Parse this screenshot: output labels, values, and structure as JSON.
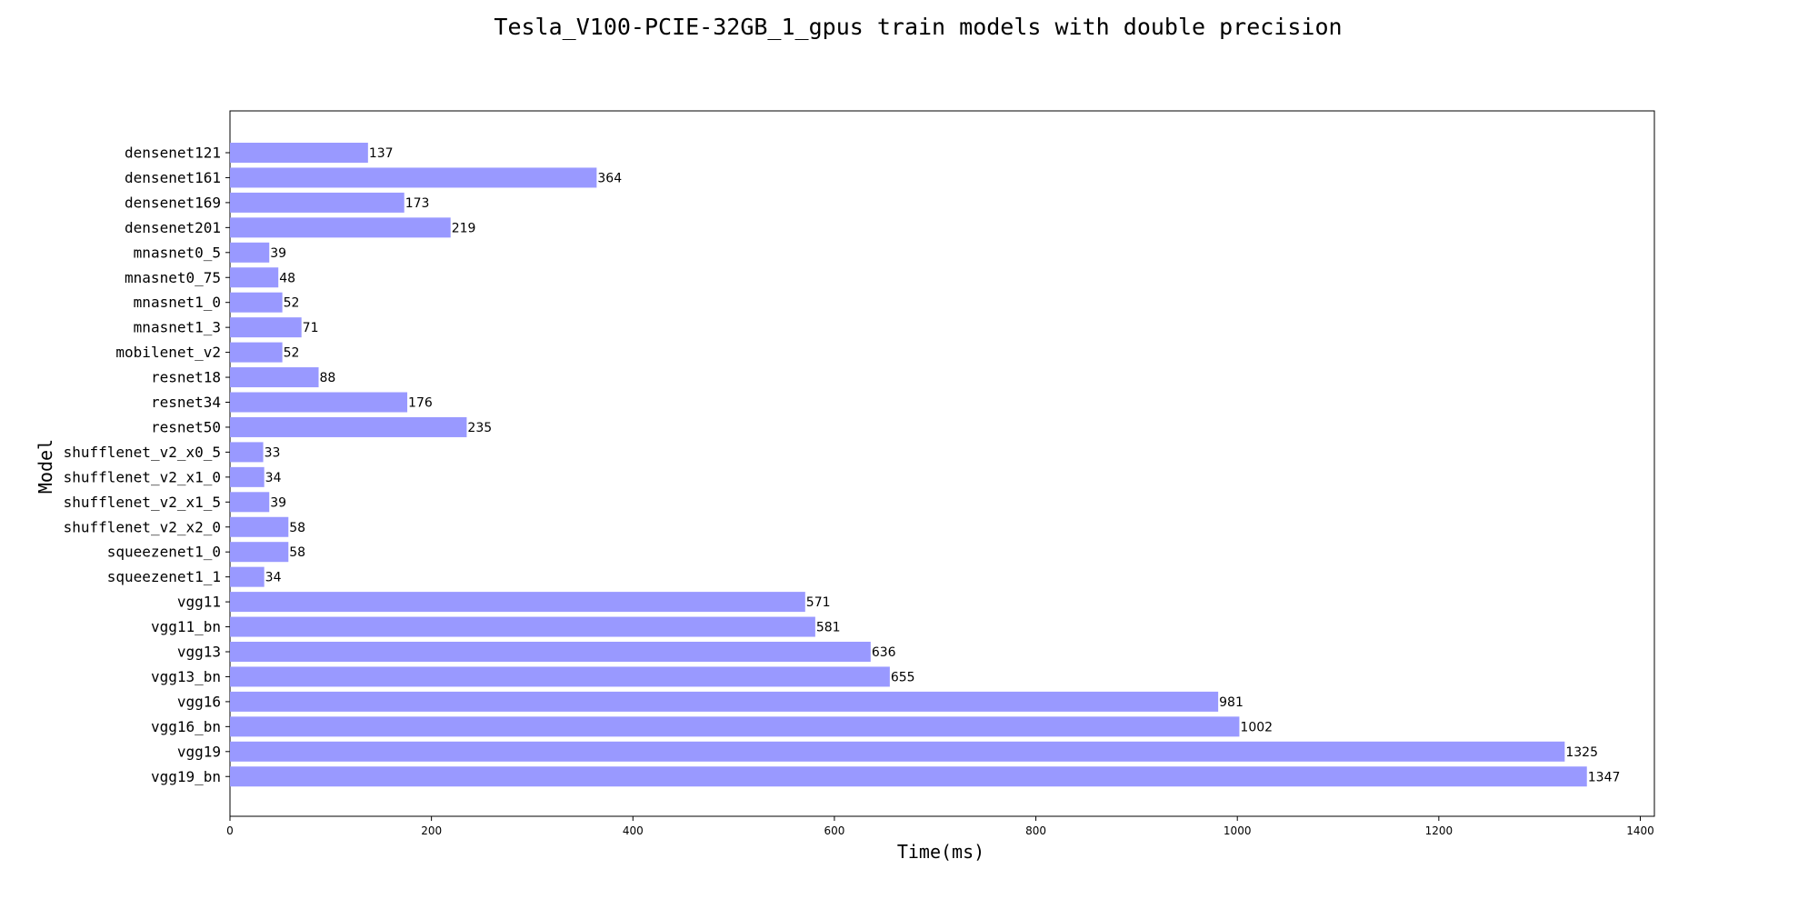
{
  "chart_data": {
    "type": "bar",
    "orientation": "horizontal",
    "title": "Tesla_V100-PCIE-32GB_1_gpus train models with double precision",
    "xlabel": "Time(ms)",
    "ylabel": "Model",
    "xlim": [
      0,
      1414
    ],
    "xticks": [
      0,
      200,
      400,
      600,
      800,
      1000,
      1200,
      1400
    ],
    "grid": false,
    "bar_color": "#9999ff",
    "categories": [
      "densenet121",
      "densenet161",
      "densenet169",
      "densenet201",
      "mnasnet0_5",
      "mnasnet0_75",
      "mnasnet1_0",
      "mnasnet1_3",
      "mobilenet_v2",
      "resnet18",
      "resnet34",
      "resnet50",
      "shufflenet_v2_x0_5",
      "shufflenet_v2_x1_0",
      "shufflenet_v2_x1_5",
      "shufflenet_v2_x2_0",
      "squeezenet1_0",
      "squeezenet1_1",
      "vgg11",
      "vgg11_bn",
      "vgg13",
      "vgg13_bn",
      "vgg16",
      "vgg16_bn",
      "vgg19",
      "vgg19_bn"
    ],
    "values": [
      137,
      364,
      173,
      219,
      39,
      48,
      52,
      71,
      52,
      88,
      176,
      235,
      33,
      34,
      39,
      58,
      58,
      34,
      571,
      581,
      636,
      655,
      981,
      1002,
      1325,
      1347
    ]
  }
}
